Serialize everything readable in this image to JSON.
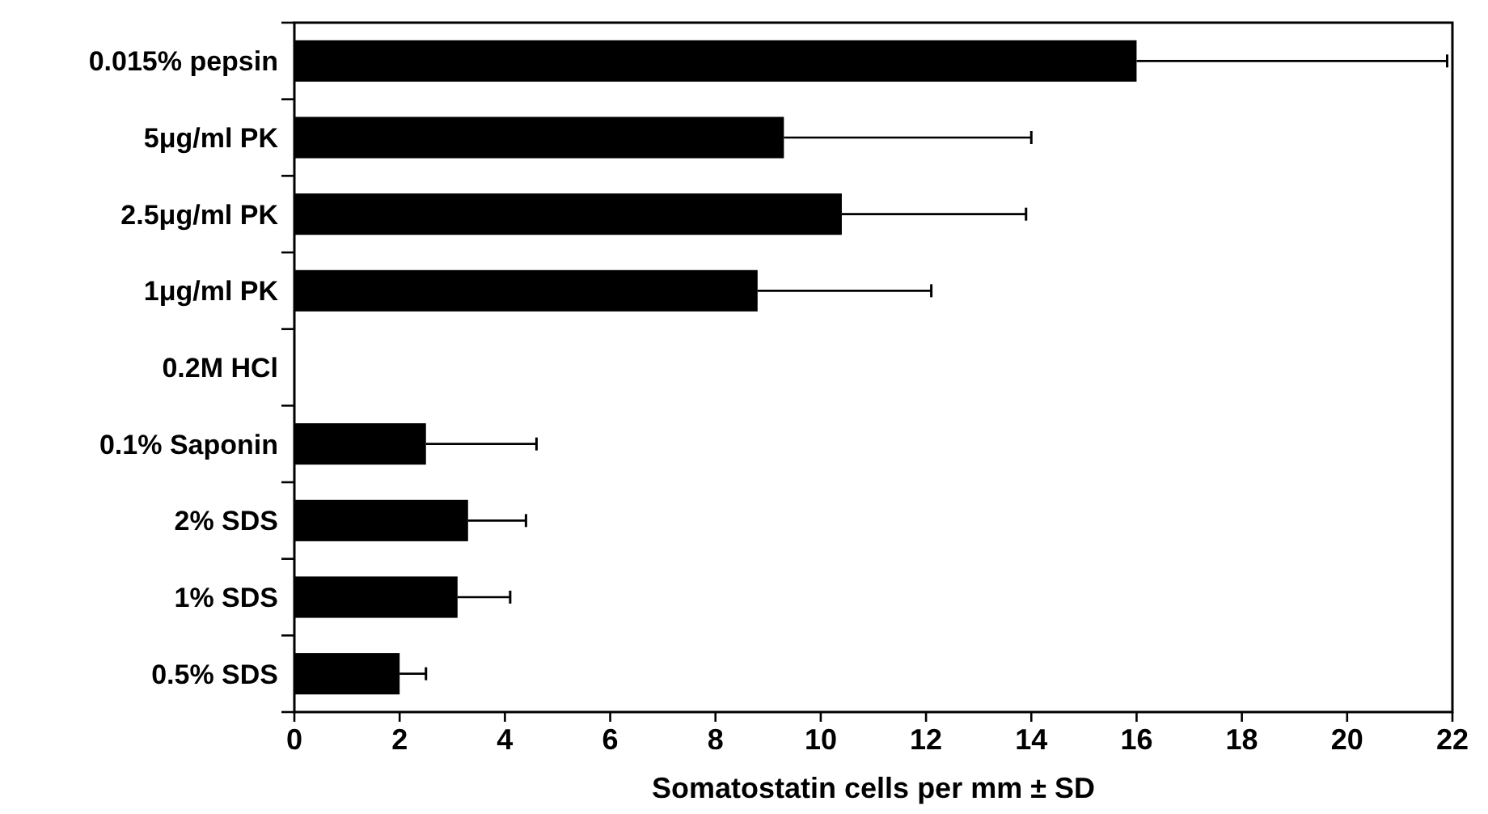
{
  "chart_data": {
    "type": "bar",
    "orientation": "horizontal",
    "xlabel": "Somatostatin cells per mm ± SD",
    "categories": [
      "0.015% pepsin",
      "5μg/ml PK",
      "2.5μg/ml PK",
      "1μg/ml PK",
      "0.2M HCl",
      "0.1% Saponin",
      "2% SDS",
      "1% SDS",
      "0.5% SDS"
    ],
    "values": [
      16,
      9.3,
      10.4,
      8.8,
      null,
      2.5,
      3.3,
      3.1,
      2.0
    ],
    "errors": [
      [
        16,
        21.9
      ],
      [
        9.3,
        14.0
      ],
      [
        10.4,
        13.9
      ],
      [
        8.8,
        12.1
      ],
      null,
      [
        2.5,
        4.6
      ],
      [
        3.3,
        4.4
      ],
      [
        3.1,
        4.1
      ],
      [
        2.0,
        2.5
      ]
    ],
    "color": "#000000",
    "xlim": [
      0,
      22
    ],
    "xticks": [
      0,
      2,
      4,
      6,
      8,
      10,
      12,
      14,
      16,
      18,
      20,
      22
    ],
    "grid": false
  }
}
